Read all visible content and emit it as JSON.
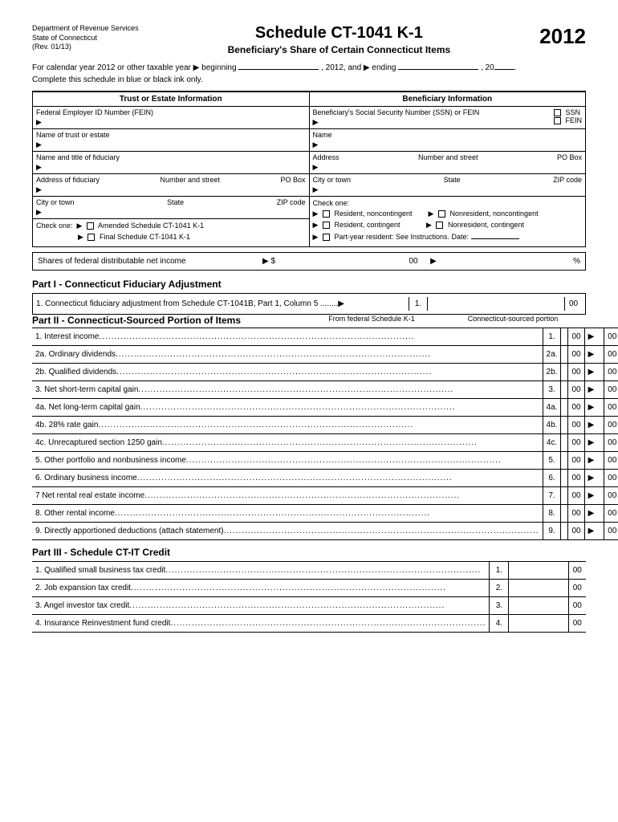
{
  "header": {
    "dept": "Department of Revenue Services",
    "state": "State of Connecticut",
    "rev": "(Rev. 01/13)",
    "title": "Schedule CT-1041 K-1",
    "subtitle": "Beneficiary's Share of Certain Connecticut Items",
    "year": "2012"
  },
  "intro": {
    "line1a": "For calendar year 2012 or other taxable year",
    "beginning": "beginning",
    "mid": ", 2012, and",
    "ending": "ending",
    "tail": ", 20",
    "line2": "Complete this schedule in blue or black ink only."
  },
  "trust": {
    "header": "Trust or Estate Information",
    "fein": "Federal Employer ID Number (FEIN)",
    "name": "Name of trust or estate",
    "fiduciary": "Name and title of fiduciary",
    "address": "Address of fiduciary",
    "numstreet": "Number and street",
    "pobox": "PO Box",
    "city": "City or town",
    "state": "State",
    "zip": "ZIP code",
    "checkone": "Check one:",
    "amended": "Amended Schedule CT-1041 K-1",
    "final": "Final Schedule CT-1041 K-1"
  },
  "beneficiary": {
    "header": "Beneficiary Information",
    "ssn": "Beneficiary's Social Security Number (SSN) or FEIN",
    "ssn_lbl": "SSN",
    "fein_lbl": "FEIN",
    "name": "Name",
    "address": "Address",
    "numstreet": "Number and street",
    "pobox": "PO Box",
    "city": "City or town",
    "state": "State",
    "zip": "ZIP code",
    "checkone": "Check one:",
    "res_nc": "Resident, noncontingent",
    "nres_nc": "Nonresident, noncontingent",
    "res_c": "Resident, contingent",
    "nres_c": "Nonresident, contingent",
    "party": "Part-year resident: See Instructions. Date:"
  },
  "shares": {
    "label": "Shares of federal distributable net income",
    "dollar": "$",
    "zz": "00",
    "pct": "%"
  },
  "part1": {
    "title": "Part I - Connecticut Fiduciary Adjustment",
    "line1": "1.  Connecticut fiduciary adjustment from Schedule CT-1041B, Part 1, Column 5 ........",
    "num": "1.",
    "zz": "00"
  },
  "part2": {
    "title": "Part II - Connecticut-Sourced Portion of Items",
    "h1": "From federal Schedule K-1",
    "h2": "Connecticut-sourced portion",
    "rows": [
      {
        "num": "1.",
        "desc": "1.  Interest income"
      },
      {
        "num": "2a.",
        "desc": "2a.  Ordinary dividends"
      },
      {
        "num": "2b.",
        "desc": "2b.  Qualified dividends"
      },
      {
        "num": "3.",
        "desc": "3.  Net short-term capital gain"
      },
      {
        "num": "4a.",
        "desc": "4a.  Net long-term capital gain"
      },
      {
        "num": "4b.",
        "desc": "4b.  28% rate gain"
      },
      {
        "num": "4c.",
        "desc": "4c.  Unrecaptured section 1250 gain"
      },
      {
        "num": "5.",
        "desc": "5.  Other portfolio and nonbusiness income"
      },
      {
        "num": "6.",
        "desc": "6.  Ordinary business income"
      },
      {
        "num": "7.",
        "desc": "7   Net rental real estate income"
      },
      {
        "num": "8.",
        "desc": "8.  Other rental income"
      },
      {
        "num": "9.",
        "desc": "9.  Directly apportioned deductions (attach statement)"
      }
    ],
    "zz": "00"
  },
  "part3": {
    "title": "Part III - Schedule CT-IT Credit",
    "rows": [
      {
        "num": "1.",
        "desc": "1.  Qualified small business tax credit"
      },
      {
        "num": "2.",
        "desc": "2.  Job expansion tax credit"
      },
      {
        "num": "3.",
        "desc": "3.  Angel investor tax credit"
      },
      {
        "num": "4.",
        "desc": "4.  Insurance Reinvestment fund credit"
      }
    ],
    "zz": "00"
  },
  "arrow": "▶"
}
